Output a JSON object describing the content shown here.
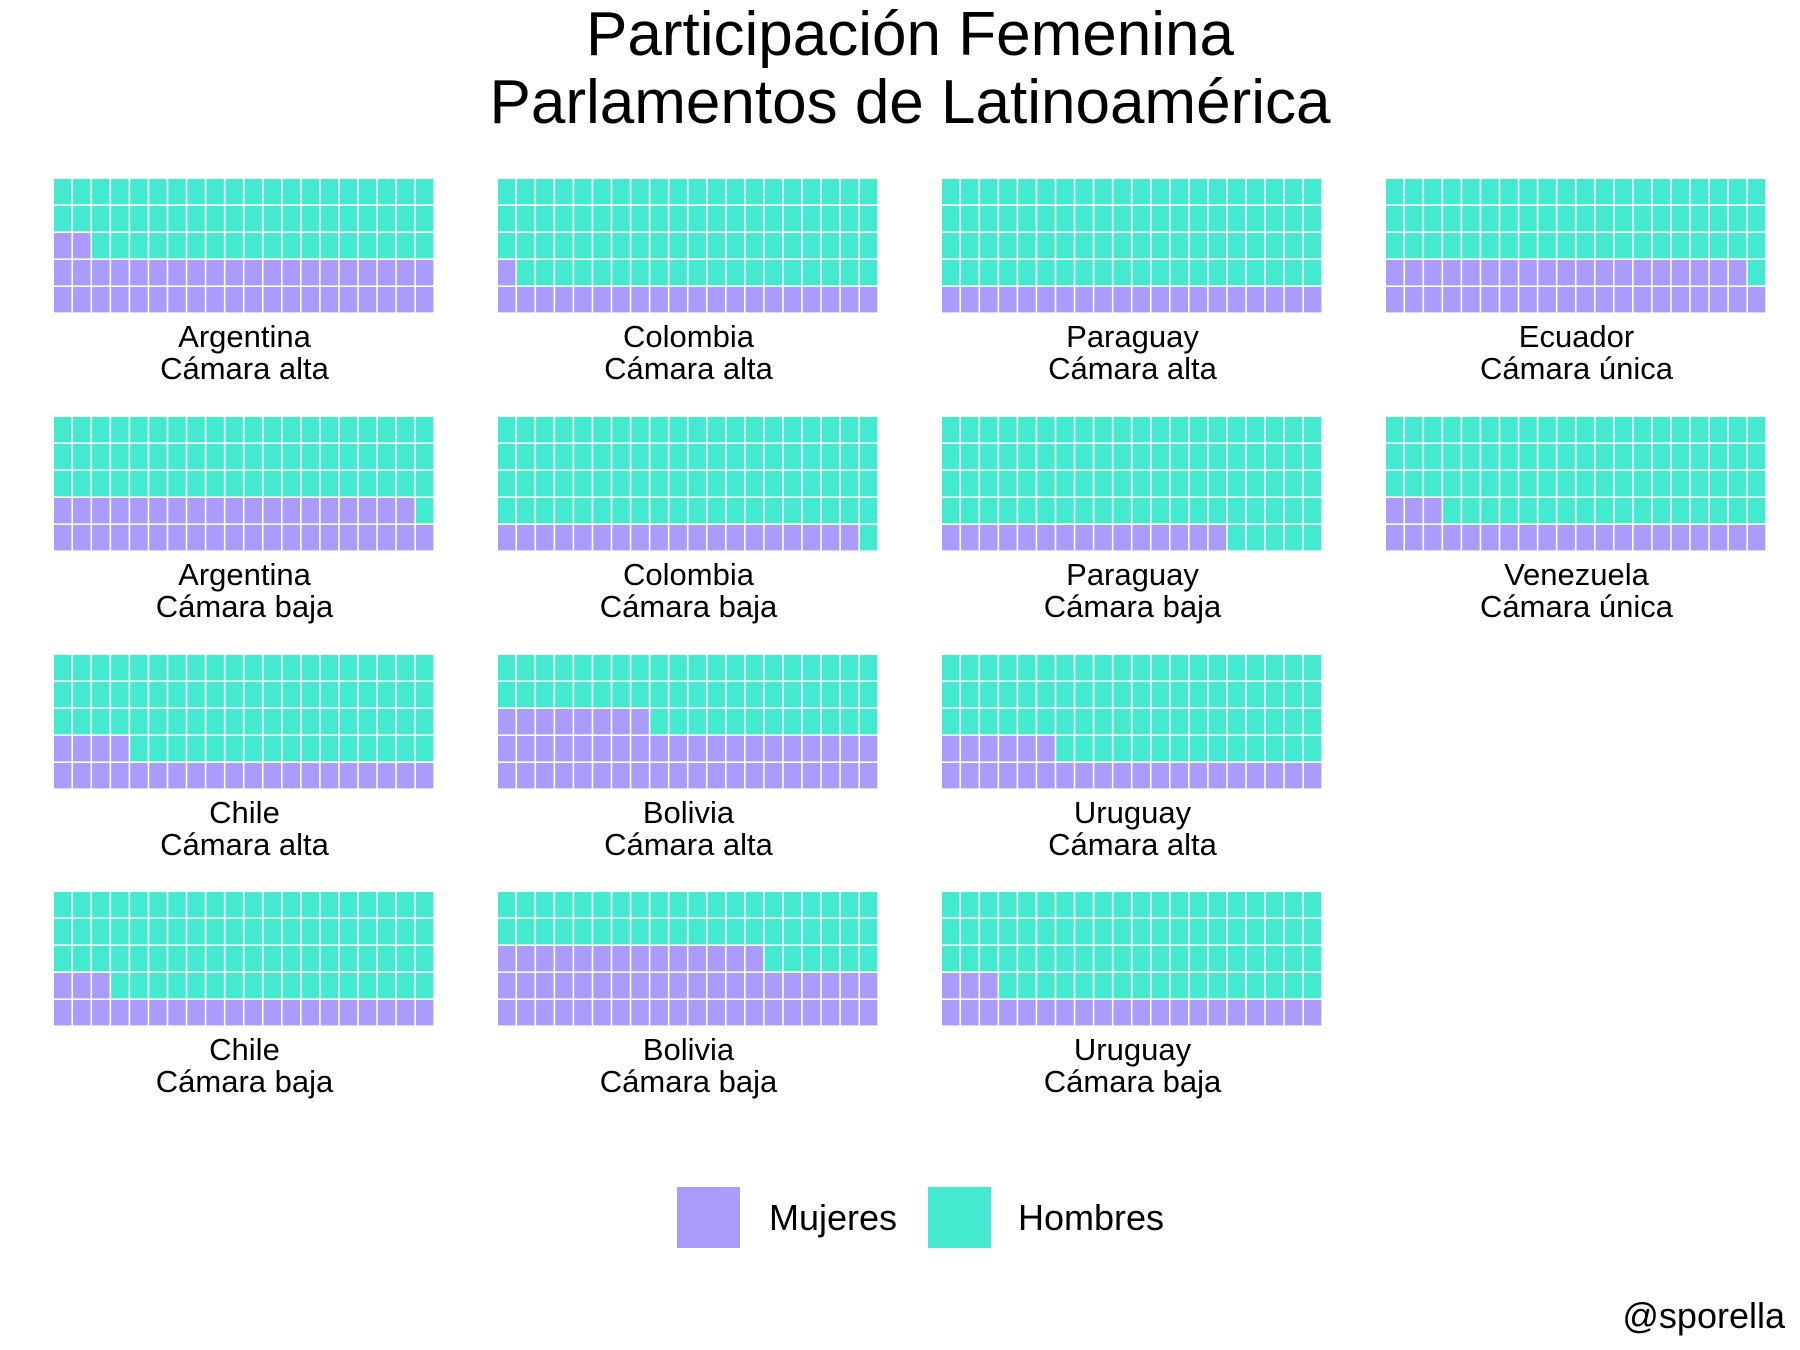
{
  "chart_data": {
    "type": "waffle",
    "title": [
      "Participación Femenina",
      "Parlamentos de Latinoamérica"
    ],
    "caption": "@sporella",
    "grid_columns": 20,
    "grid_rows": 5,
    "total_cells": 100,
    "fill_order": "row-wise from bottom-left",
    "legend": {
      "position": "bottom",
      "entries": [
        {
          "name": "Mujeres",
          "color": "#AB9BFD"
        },
        {
          "name": "Hombres",
          "color": "#44EACF"
        }
      ]
    },
    "panels": [
      {
        "country": "Argentina",
        "chamber": "Cámara alta",
        "mujeres": 42,
        "hombres": 58
      },
      {
        "country": "Colombia",
        "chamber": "Cámara alta",
        "mujeres": 21,
        "hombres": 79
      },
      {
        "country": "Paraguay",
        "chamber": "Cámara alta",
        "mujeres": 20,
        "hombres": 80
      },
      {
        "country": "Ecuador",
        "chamber": "Cámara única",
        "mujeres": 39,
        "hombres": 61
      },
      {
        "country": "Argentina",
        "chamber": "Cámara baja",
        "mujeres": 39,
        "hombres": 61
      },
      {
        "country": "Colombia",
        "chamber": "Cámara baja",
        "mujeres": 19,
        "hombres": 81
      },
      {
        "country": "Paraguay",
        "chamber": "Cámara baja",
        "mujeres": 15,
        "hombres": 85
      },
      {
        "country": "Venezuela",
        "chamber": "Cámara única",
        "mujeres": 23,
        "hombres": 77
      },
      {
        "country": "Chile",
        "chamber": "Cámara alta",
        "mujeres": 24,
        "hombres": 76
      },
      {
        "country": "Bolivia",
        "chamber": "Cámara alta",
        "mujeres": 48,
        "hombres": 52
      },
      {
        "country": "Uruguay",
        "chamber": "Cámara alta",
        "mujeres": 26,
        "hombres": 74
      },
      {
        "country": "Chile",
        "chamber": "Cámara baja",
        "mujeres": 23,
        "hombres": 77
      },
      {
        "country": "Bolivia",
        "chamber": "Cámara baja",
        "mujeres": 54,
        "hombres": 46
      },
      {
        "country": "Uruguay",
        "chamber": "Cámara baja",
        "mujeres": 23,
        "hombres": 77
      }
    ]
  }
}
